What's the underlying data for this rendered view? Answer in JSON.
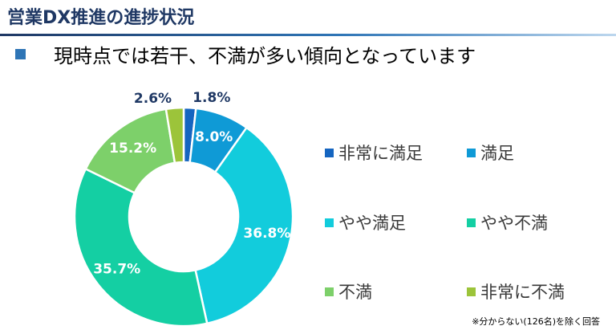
{
  "header": {
    "title": "営業DX推進の進捗状況",
    "subtitle": "現時点では若干、不満が多い傾向となっています"
  },
  "colors": {
    "title": "#1f3864",
    "bullet": "#2e75b6"
  },
  "chart_data": {
    "type": "pie",
    "donut": true,
    "categories": [
      "非常に満足",
      "満足",
      "やや満足",
      "やや不満",
      "不満",
      "非常に不満"
    ],
    "values": [
      1.8,
      8.0,
      36.8,
      35.7,
      15.2,
      2.6
    ],
    "data_labels": [
      "1.8%",
      "8.0%",
      "36.8%",
      "35.7%",
      "15.2%",
      "2.6%"
    ],
    "colors": [
      "#1565c0",
      "#0f9ad6",
      "#12ccdc",
      "#14cfa3",
      "#7dd06a",
      "#9cc43a"
    ],
    "label_colors": [
      "#1f3864",
      "#ffffff",
      "#ffffff",
      "#ffffff",
      "#ffffff",
      "#1f3864"
    ],
    "legend_position": "right"
  },
  "footnote": "※分からない(126名)を除く回答"
}
